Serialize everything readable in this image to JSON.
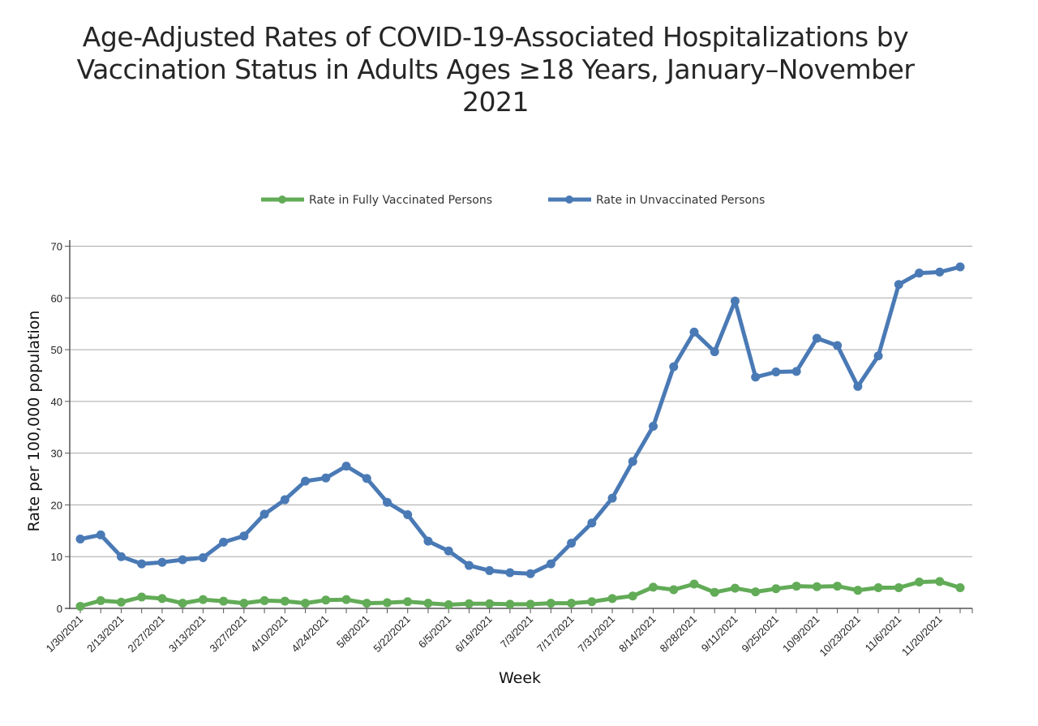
{
  "chart_data": {
    "type": "line",
    "title_lines": [
      "Age-Adjusted Rates of COVID-19-Associated Hospitalizations by",
      "Vaccination Status in Adults Ages ≥18 Years, January–November",
      "2021"
    ],
    "title": "Age-Adjusted Rates of COVID-19-Associated Hospitalizations by Vaccination Status in Adults Ages ≥18 Years, January–November 2021",
    "xlabel": "Week",
    "ylabel": "Rate per 100,000 population",
    "ylim": [
      0,
      70
    ],
    "yticks": [
      0,
      10,
      20,
      30,
      40,
      50,
      60,
      70
    ],
    "grid": true,
    "legend_position": "top-center",
    "x_tick_labels": [
      "1/30/2021",
      "2/13/2021",
      "2/27/2021",
      "3/13/2021",
      "3/27/2021",
      "4/10/2021",
      "4/24/2021",
      "5/8/2021",
      "5/22/2021",
      "6/5/2021",
      "6/19/2021",
      "7/3/2021",
      "7/17/2021",
      "7/31/2021",
      "8/14/2021",
      "8/28/2021",
      "9/11/2021",
      "9/25/2021",
      "10/9/2021",
      "10/23/2021",
      "11/6/2021",
      "11/20/2021"
    ],
    "x_label_every": 2,
    "num_weeks": 44,
    "series": [
      {
        "name": "Rate in Fully Vaccinated Persons",
        "color": "#62ab57",
        "values": [
          0.4,
          1.5,
          1.2,
          2.2,
          1.9,
          1.0,
          1.7,
          1.4,
          1.0,
          1.5,
          1.4,
          1.0,
          1.6,
          1.7,
          1.0,
          1.1,
          1.3,
          1.0,
          0.7,
          0.9,
          0.9,
          0.8,
          0.8,
          1.0,
          1.0,
          1.3,
          1.9,
          2.4,
          4.1,
          3.6,
          4.7,
          3.1,
          3.9,
          3.2,
          3.8,
          4.3,
          4.2,
          4.3,
          3.5,
          4.0,
          4.0,
          5.1,
          5.2,
          4.0
        ]
      },
      {
        "name": "Rate in Unvaccinated Persons",
        "color": "#4a7ab5",
        "values": [
          13.4,
          14.2,
          10.0,
          8.6,
          8.9,
          9.4,
          9.8,
          12.8,
          14.0,
          18.2,
          21.0,
          24.6,
          25.2,
          27.5,
          25.1,
          20.5,
          18.1,
          13.0,
          11.1,
          8.3,
          7.3,
          6.9,
          6.7,
          8.6,
          12.6,
          16.5,
          21.3,
          28.4,
          35.2,
          46.7,
          53.4,
          49.6,
          59.4,
          44.7,
          45.7,
          45.8,
          52.2,
          50.8,
          42.9,
          48.8,
          62.6,
          64.8,
          65.0,
          66.0
        ]
      }
    ]
  }
}
